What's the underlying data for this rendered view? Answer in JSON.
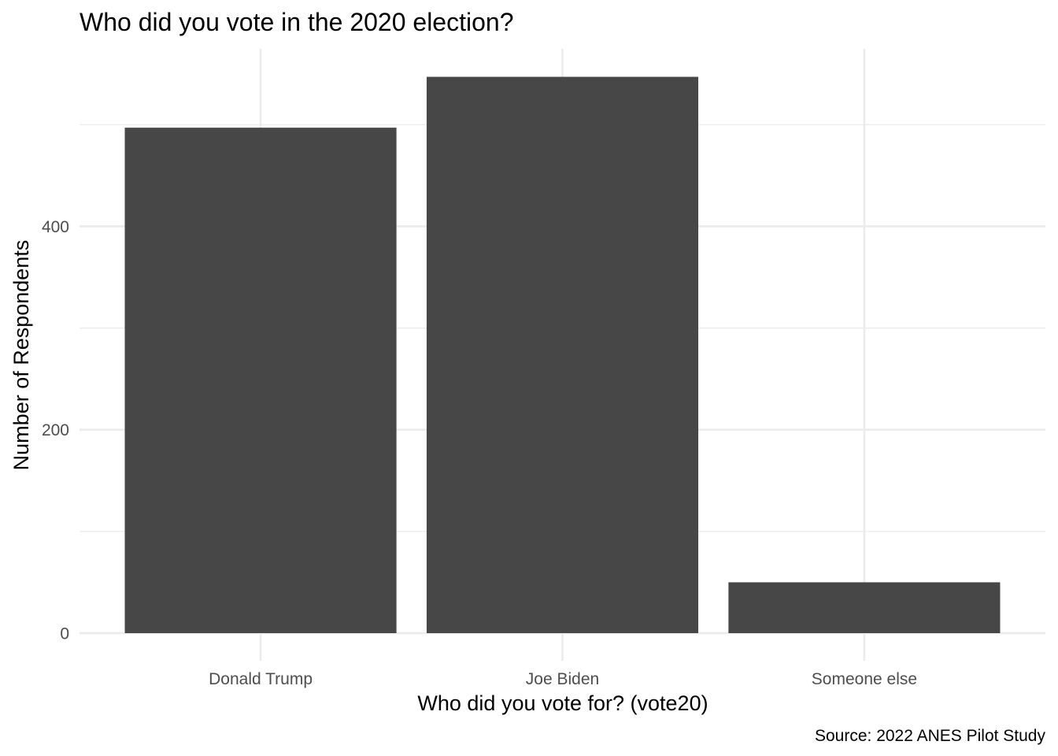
{
  "chart_data": {
    "type": "bar",
    "title": "Who did you vote in the 2020 election?",
    "xlabel": "Who did you vote for? (vote20)",
    "ylabel": "Number of Respondents",
    "caption": "Source: 2022 ANES Pilot Study",
    "categories": [
      "Donald Trump",
      "Joe Biden",
      "Someone else"
    ],
    "values": [
      497,
      547,
      50
    ],
    "ylim": [
      0,
      575
    ],
    "yticks": [
      0,
      200,
      400
    ],
    "y_minor_ticks": [
      100,
      300,
      500
    ],
    "grid": true,
    "bar_color": "#474747",
    "grid_color": "#ebebeb",
    "tick_label_color": "#4d4d4d",
    "background": "#ffffff"
  }
}
